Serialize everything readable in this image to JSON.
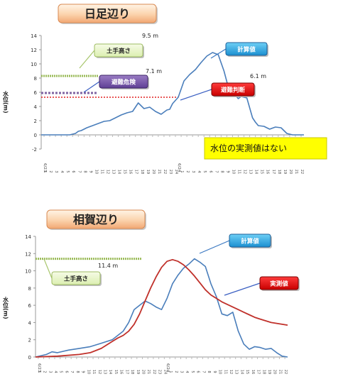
{
  "chart_data": [
    {
      "type": "line",
      "title": "日足辺り",
      "ylabel": "水位(m)",
      "ylim": [
        -2,
        14
      ],
      "yticks": [
        -2,
        0,
        2,
        4,
        6,
        8,
        10,
        12,
        14
      ],
      "x_date_labels": [
        "6/23",
        "6/24"
      ],
      "x_hour_labels": [
        "1",
        "2",
        "3",
        "4",
        "5",
        "6",
        "7",
        "8",
        "9",
        "10",
        "11",
        "12",
        "13",
        "14",
        "15",
        "16",
        "17",
        "18",
        "19",
        "20",
        "21",
        "22",
        "23",
        "24",
        "1",
        "2",
        "3",
        "4",
        "5",
        "6",
        "7",
        "8",
        "9",
        "10",
        "11",
        "12",
        "13",
        "14",
        "15",
        "16",
        "17",
        "18",
        "19",
        "20",
        "21",
        "22"
      ],
      "series": [
        {
          "name": "計算値",
          "color": "#4a7ebb",
          "x": [
            0,
            5,
            6,
            6.5,
            7,
            8,
            9,
            10,
            11,
            12,
            13,
            14,
            15,
            16,
            17,
            18,
            19,
            20,
            21,
            22,
            22.5,
            23,
            24,
            25,
            26,
            27,
            28,
            29,
            30,
            31,
            32,
            33,
            34,
            34.5,
            35,
            36,
            37,
            37.5,
            38,
            39,
            40,
            41,
            42,
            43,
            44,
            45,
            46
          ],
          "y": [
            0,
            0,
            0.2,
            0.5,
            0.6,
            1.0,
            1.3,
            1.6,
            1.9,
            2.0,
            2.4,
            2.8,
            3.1,
            3.3,
            4.5,
            3.7,
            3.9,
            3.3,
            2.9,
            3.5,
            3.6,
            4.4,
            5.3,
            7.6,
            8.5,
            9.2,
            10.2,
            11.1,
            11.6,
            11.3,
            9.0,
            6.0,
            5.6,
            5.1,
            5.4,
            5.2,
            2.4,
            1.8,
            1.3,
            1.2,
            0.8,
            1.1,
            1.0,
            0.2,
            0,
            0,
            0
          ]
        }
      ],
      "thresholds": [
        {
          "name": "土手高さ",
          "value": 8.3,
          "color": "#9bbb59"
        },
        {
          "name": "避難危険",
          "value": 5.9,
          "color": "#7f64a2"
        },
        {
          "name": "避難判断",
          "value": 5.3,
          "color": "#e02020"
        }
      ],
      "annotations": [
        "9.5 m",
        "7.1 m",
        "6.1 m"
      ],
      "callouts": [
        {
          "text": "計算値",
          "style": "blue"
        },
        {
          "text": "避難判断",
          "style": "red"
        },
        {
          "text": "避難危険",
          "style": "purple"
        },
        {
          "text": "土手高さ",
          "style": "green"
        }
      ],
      "note": "水位の実測値はない"
    },
    {
      "type": "line",
      "title": "相賀辺り",
      "ylabel": "水位(m)",
      "ylim": [
        0,
        14
      ],
      "yticks": [
        0,
        2,
        4,
        6,
        8,
        10,
        12,
        14
      ],
      "x_date_labels": [
        "6/23",
        "6/24"
      ],
      "x_hour_labels": [
        "1",
        "2",
        "3",
        "4",
        "5",
        "6",
        "7",
        "8",
        "9",
        "10",
        "11",
        "12",
        "13",
        "14",
        "15",
        "16",
        "17",
        "18",
        "19",
        "20",
        "21",
        "22",
        "23",
        "24",
        "1",
        "2",
        "3",
        "4",
        "5",
        "6",
        "7",
        "8",
        "9",
        "10",
        "11",
        "12",
        "13",
        "14",
        "15",
        "16",
        "17",
        "18",
        "19",
        "20",
        "21",
        "22"
      ],
      "series": [
        {
          "name": "計算値",
          "color": "#4a7ebb",
          "x": [
            0,
            2,
            3,
            4,
            6,
            8,
            10,
            12,
            13,
            14,
            15,
            16,
            17,
            18,
            19,
            20,
            21,
            22,
            23,
            24,
            25,
            26,
            27,
            28,
            29,
            30,
            31,
            32,
            33,
            34,
            35,
            36,
            37,
            38,
            39,
            40,
            41,
            42,
            43,
            44,
            45,
            46
          ],
          "y": [
            0,
            0.3,
            0.6,
            0.5,
            0.8,
            1.0,
            1.2,
            1.6,
            1.8,
            2.0,
            2.5,
            3.0,
            4.0,
            5.5,
            6.0,
            6.5,
            6.2,
            5.8,
            5.5,
            6.8,
            8.5,
            9.5,
            10.3,
            10.8,
            11.4,
            11.0,
            10.5,
            8.5,
            7.0,
            5.0,
            4.8,
            5.2,
            3.0,
            1.5,
            0.9,
            1.2,
            1.1,
            0.9,
            1.0,
            0.5,
            0.1,
            0
          ]
        },
        {
          "name": "実測値",
          "color": "#c0302a",
          "x": [
            0,
            4,
            8,
            10,
            12,
            14,
            15,
            16,
            17,
            18,
            19,
            20,
            21,
            22,
            23,
            24,
            25,
            26,
            27,
            28,
            29,
            30,
            31,
            32,
            33,
            34,
            35,
            36,
            37,
            38,
            39,
            40,
            41,
            42,
            43,
            44,
            45,
            46
          ],
          "y": [
            0,
            0.1,
            0.3,
            0.5,
            1.0,
            1.8,
            2.2,
            2.5,
            3.0,
            3.8,
            5.0,
            6.5,
            8.0,
            9.3,
            10.4,
            11.1,
            11.3,
            11.1,
            10.7,
            10.1,
            9.4,
            8.6,
            7.8,
            7.2,
            6.8,
            6.4,
            6.1,
            5.8,
            5.5,
            5.2,
            4.9,
            4.6,
            4.4,
            4.2,
            4.0,
            3.9,
            3.8,
            3.7
          ]
        }
      ],
      "thresholds": [
        {
          "name": "土手高さ",
          "value": 11.4,
          "color": "#9bbb59"
        }
      ],
      "annotations": [
        "11.4 m"
      ],
      "callouts": [
        {
          "text": "計算値",
          "style": "blue"
        },
        {
          "text": "実測値",
          "style": "red"
        },
        {
          "text": "土手高さ",
          "style": "green"
        }
      ]
    }
  ]
}
